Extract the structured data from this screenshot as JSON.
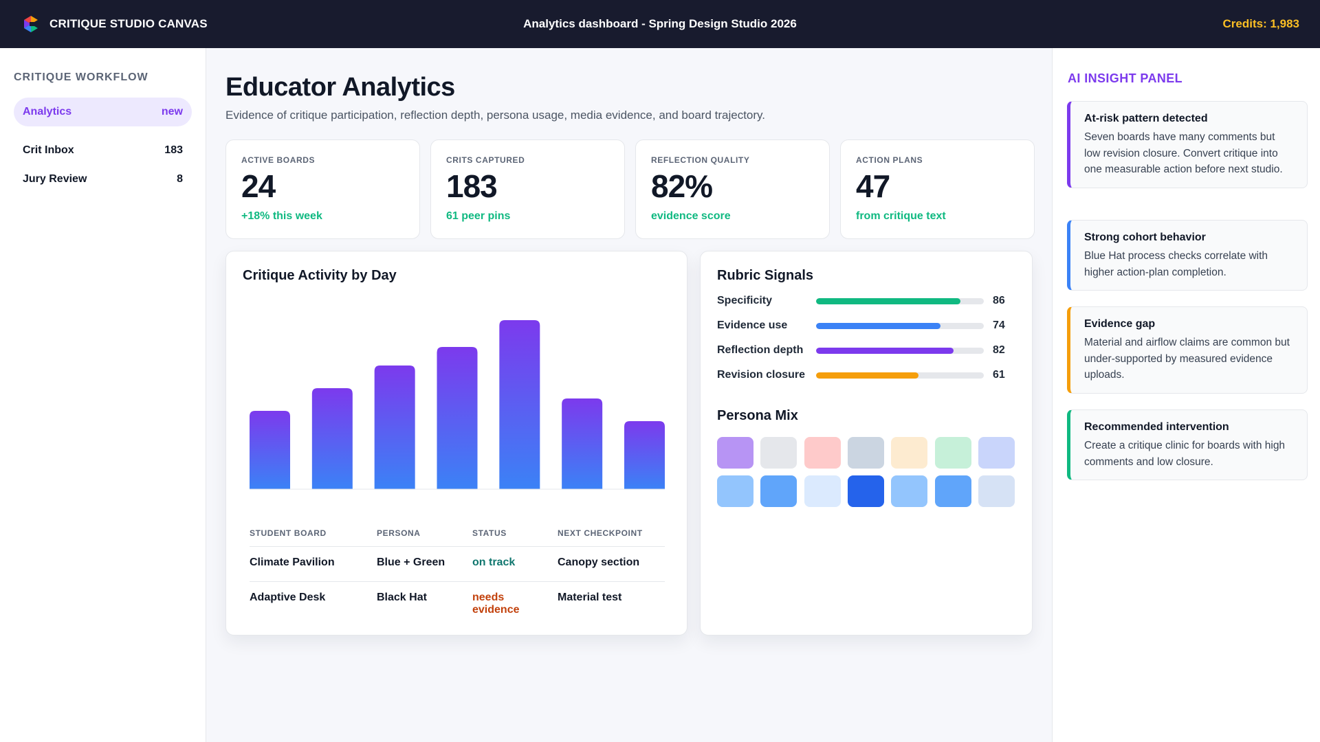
{
  "app": {
    "name": "CRITIQUE STUDIO CANVAS",
    "title": "Analytics dashboard - Spring Design Studio 2026",
    "credits": "Credits: 1,983"
  },
  "sidebar": {
    "heading": "CRITIQUE WORKFLOW",
    "items": [
      {
        "label": "Analytics",
        "badge": "new"
      },
      {
        "label": "Crit Inbox",
        "badge": "183"
      },
      {
        "label": "Jury Review",
        "badge": "8"
      }
    ]
  },
  "main": {
    "title": "Educator Analytics",
    "subtitle": "Evidence of critique participation, reflection depth, persona usage, media evidence, and board trajectory.",
    "kpis": [
      {
        "label": "ACTIVE BOARDS",
        "value": "24",
        "sub": "+18% this week"
      },
      {
        "label": "CRITS CAPTURED",
        "value": "183",
        "sub": "61 peer pins"
      },
      {
        "label": "REFLECTION QUALITY",
        "value": "82%",
        "sub": "evidence score"
      },
      {
        "label": "ACTION PLANS",
        "value": "47",
        "sub": "from critique text"
      }
    ],
    "activity": {
      "title": "Critique Activity by Day",
      "table": {
        "headers": [
          "STUDENT BOARD",
          "PERSONA",
          "STATUS",
          "NEXT CHECKPOINT"
        ],
        "rows": [
          [
            "Climate Pavilion",
            "Blue + Green",
            "on track",
            "Canopy section"
          ],
          [
            "Adaptive Desk",
            "Black Hat",
            "needs evidence",
            "Material test"
          ]
        ]
      }
    },
    "rubric": {
      "title": "Rubric Signals",
      "rows": [
        {
          "label": "Specificity",
          "value": 86,
          "display": "86",
          "color": "#10b981"
        },
        {
          "label": "Evidence use",
          "value": 74,
          "display": "74",
          "color": "#3b82f6"
        },
        {
          "label": "Reflection depth",
          "value": 82,
          "display": "82",
          "color": "#7c3aed"
        },
        {
          "label": "Revision closure",
          "value": 61,
          "display": "61",
          "color": "#f59e0b"
        }
      ],
      "persona_title": "Persona Mix",
      "persona_colors": [
        [
          "#b794f4",
          "#e5e7eb",
          "#fecaca",
          "#cbd5e1",
          "#fdebd0",
          "#c6f0d9",
          "#c9d5fb"
        ],
        [
          "#93c5fd",
          "#60a5fa",
          "#dbeafe",
          "#2563eb",
          "#93c5fd",
          "#60a5fa",
          "#d6e2f5"
        ]
      ]
    }
  },
  "ai_panel": {
    "heading": "AI INSIGHT PANEL",
    "insights": [
      {
        "title": "At-risk pattern detected",
        "body": "Seven boards have many comments but low revision closure. Convert critique into one measurable action before next studio.",
        "accent": "#7c3aed"
      },
      {
        "title": "Strong cohort behavior",
        "body": "Blue Hat process checks correlate with higher action-plan completion.",
        "accent": "#3b82f6"
      },
      {
        "title": "Evidence gap",
        "body": "Material and airflow claims are common but under-supported by measured evidence uploads.",
        "accent": "#f59e0b"
      },
      {
        "title": "Recommended intervention",
        "body": "Create a critique clinic for boards with high comments and low closure.",
        "accent": "#10b981"
      }
    ]
  },
  "chart_data": {
    "type": "bar",
    "title": "Critique Activity by Day",
    "categories": [
      "",
      "",
      "",
      "",
      "",
      "",
      ""
    ],
    "values": [
      38,
      49,
      60,
      69,
      82,
      44,
      33
    ],
    "ylim": [
      0,
      100
    ],
    "grid": false,
    "colors": {
      "top": "#7c3aed",
      "bottom": "#3b82f6"
    }
  }
}
